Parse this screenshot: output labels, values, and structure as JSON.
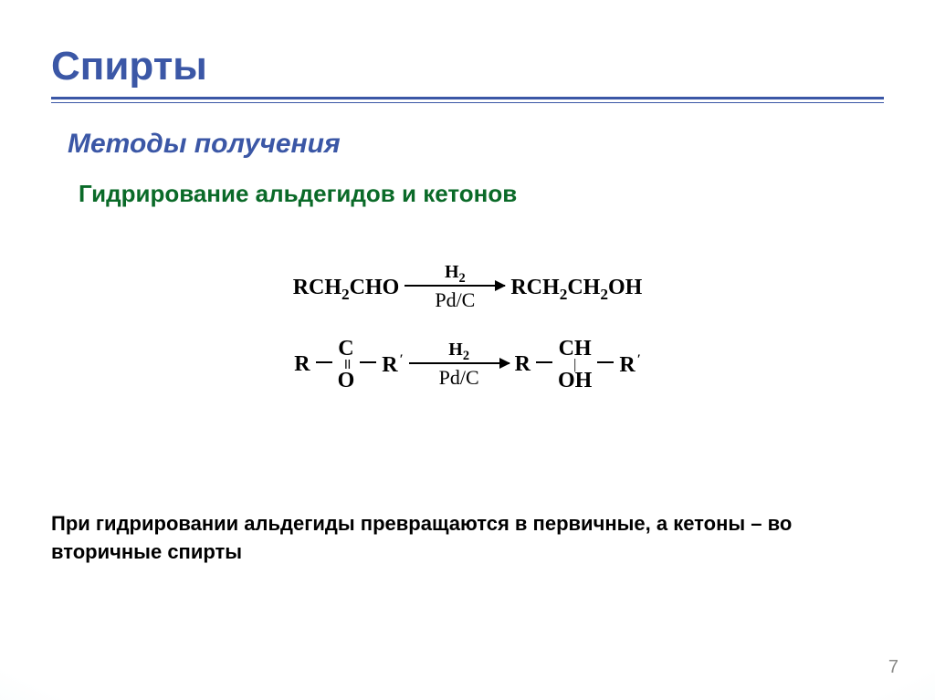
{
  "title": "Спирты",
  "subtitle": "Методы получения",
  "section": "Гидрирование альдегидов и кетонов",
  "colors": {
    "title_color": "#3b57a6",
    "rule_color": "#3b57a6",
    "section_color": "#0a6a28",
    "text_color": "#000000",
    "pagenum_color": "#8a8a88",
    "bg_center": "#ffffff",
    "bg_edge": "#b8dbe1"
  },
  "fonts": {
    "title_size_pt": 33,
    "subtitle_size_pt": 23,
    "section_size_pt": 20,
    "chem_size_pt": 18,
    "summary_size_pt": 17,
    "chem_family": "Times New Roman",
    "ui_family": "Arial"
  },
  "reactions": [
    {
      "reagent_plain": "RCH2CHO",
      "over": "H2",
      "under": "Pd/C",
      "product_plain": "RCH2CH2OH"
    },
    {
      "reagent_structured": "R−C(=O)−R'",
      "over": "H2",
      "under": "Pd/C",
      "product_structured": "R−CH(OH)−R'"
    }
  ],
  "reaction_labels": {
    "r1_reagent_R": "RCH",
    "r1_reagent_CHO": "CHO",
    "r1_product_R": "RCH",
    "r1_product_CH": "CH",
    "r1_product_OH": "OH",
    "over_H": "H",
    "under": "Pd/C",
    "R": "R",
    "Rp": "R",
    "C": "C",
    "O": "O",
    "CH": "CH",
    "OH": "OH"
  },
  "summary": "При гидрировании альдегиды превращаются в первичные, а кетоны – во вторичные спирты",
  "page_number": "7"
}
